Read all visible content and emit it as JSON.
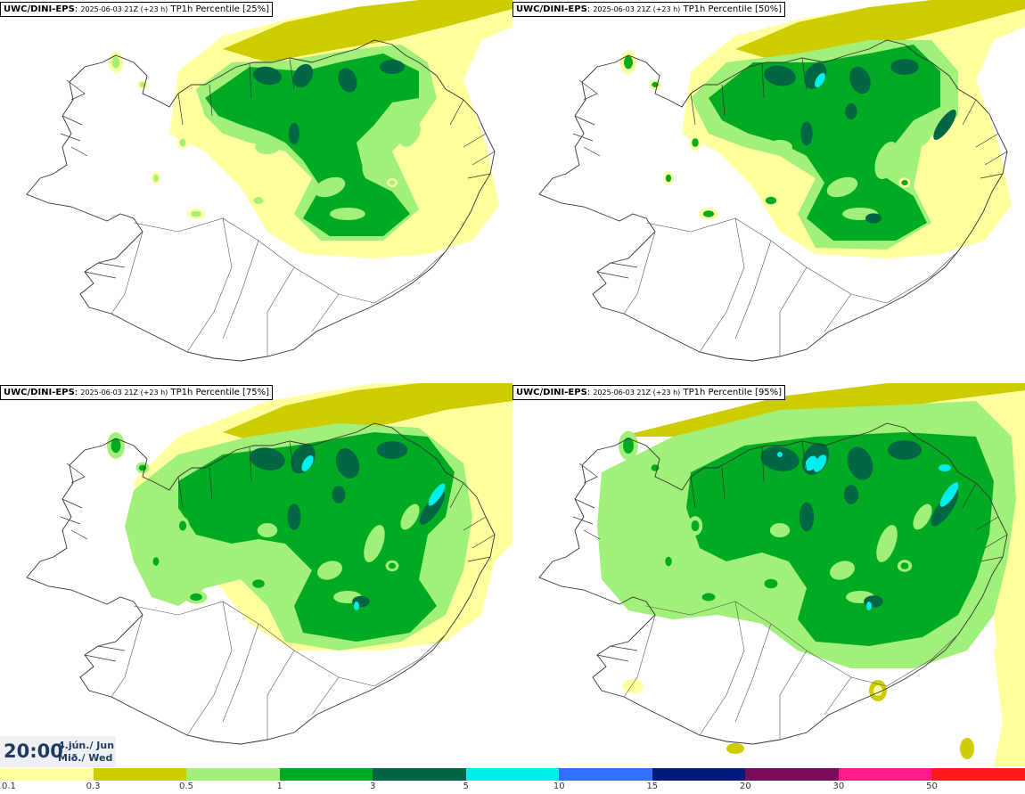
{
  "model": "UWC/DINI-EPS",
  "run_label": "2025-06-03 21Z (+23 h)",
  "variable": "TP1h Percentile",
  "panels": [
    {
      "id": "p25",
      "percentile": "[25%]"
    },
    {
      "id": "p50",
      "percentile": "[50%]"
    },
    {
      "id": "p75",
      "percentile": "[75%]"
    },
    {
      "id": "p95",
      "percentile": "[95%]"
    }
  ],
  "valid_time": {
    "time": "20:00",
    "date_line1": "4.jún./ Jun",
    "date_line2": "Mið./ Wed"
  },
  "colorbar": {
    "ticks": [
      "0.1",
      "0.3",
      "0.5",
      "1",
      "3",
      "5",
      "10",
      "15",
      "20",
      "30",
      "50"
    ],
    "colors": [
      "#ffff9e",
      "#cccc00",
      "#a0f07a",
      "#00aa22",
      "#006644",
      "#00eeee",
      "#3070ff",
      "#001a80",
      "#7a0a5a",
      "#ff1a8c",
      "#ff1a1a"
    ]
  },
  "palette": {
    "coast": "#333333",
    "bg": "#ffffff"
  }
}
